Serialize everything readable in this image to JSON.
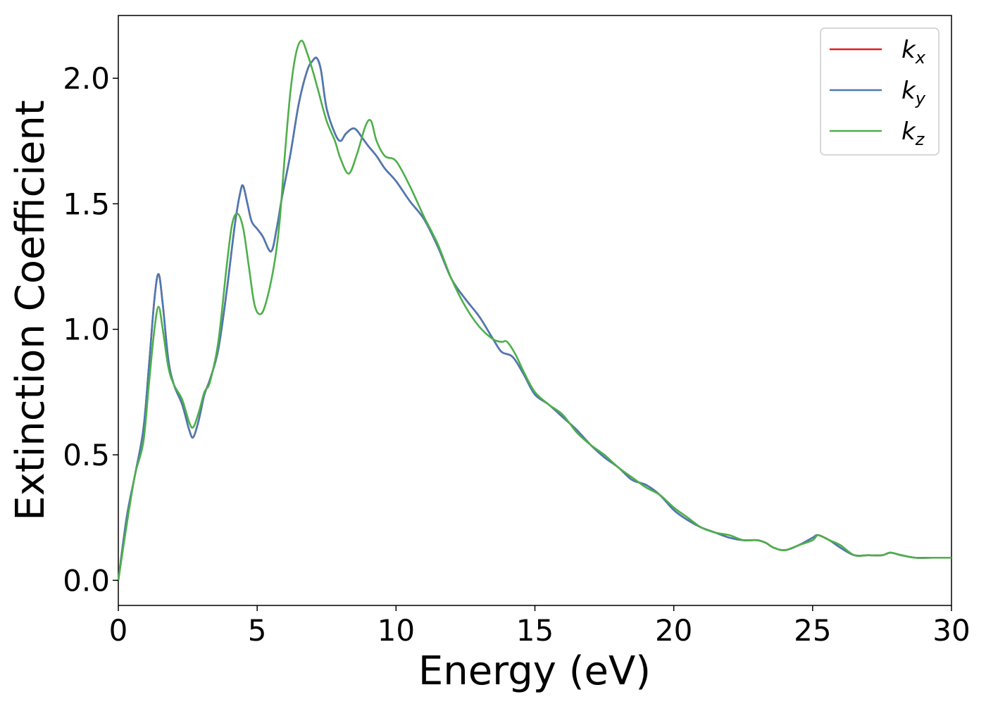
{
  "chart_data": {
    "type": "line",
    "xlabel": "Energy (eV)",
    "ylabel": "Extinction Coefficient",
    "xlim": [
      0,
      30
    ],
    "ylim": [
      -0.1,
      2.25
    ],
    "xticks": [
      0,
      5,
      10,
      15,
      20,
      25,
      30
    ],
    "yticks": [
      0.0,
      0.5,
      1.0,
      1.5,
      2.0
    ],
    "xtick_labels": [
      "0",
      "5",
      "10",
      "15",
      "20",
      "25",
      "30"
    ],
    "ytick_labels": [
      "0.0",
      "0.5",
      "1.0",
      "1.5",
      "2.0"
    ],
    "grid": false,
    "legend_position": "top-right",
    "series": [
      {
        "name": "k",
        "sub": "x",
        "color": "#e41a1c",
        "x": [
          0,
          0.3,
          0.6,
          0.9,
          1.1,
          1.3,
          1.45,
          1.6,
          1.8,
          2.0,
          2.3,
          2.55,
          2.7,
          2.9,
          3.1,
          3.3,
          3.6,
          3.9,
          4.2,
          4.4,
          4.5,
          4.65,
          4.8,
          5.0,
          5.2,
          5.5,
          5.7,
          5.9,
          6.2,
          6.5,
          6.8,
          7.0,
          7.15,
          7.3,
          7.5,
          7.8,
          8.0,
          8.2,
          8.5,
          8.8,
          9.0,
          9.3,
          9.6,
          10.0,
          10.5,
          11.0,
          11.5,
          12.0,
          12.5,
          13.0,
          13.5,
          13.8,
          14.2,
          14.6,
          15.0,
          15.5,
          16.0,
          16.5,
          17.0,
          17.5,
          18.0,
          18.5,
          19.0,
          19.5,
          20.0,
          20.5,
          21.0,
          21.5,
          22.0,
          22.5,
          23.0,
          23.3,
          23.6,
          24.0,
          24.5,
          25.0,
          25.2,
          25.6,
          26.0,
          26.5,
          27.0,
          27.5,
          27.8,
          28.2,
          28.7,
          29.3,
          30.0
        ],
        "y": [
          0.0,
          0.25,
          0.42,
          0.6,
          0.85,
          1.12,
          1.22,
          1.1,
          0.88,
          0.78,
          0.7,
          0.6,
          0.57,
          0.64,
          0.74,
          0.8,
          0.92,
          1.15,
          1.42,
          1.55,
          1.57,
          1.5,
          1.43,
          1.4,
          1.37,
          1.31,
          1.4,
          1.53,
          1.7,
          1.9,
          2.03,
          2.07,
          2.08,
          2.03,
          1.88,
          1.78,
          1.75,
          1.78,
          1.8,
          1.76,
          1.73,
          1.69,
          1.64,
          1.59,
          1.51,
          1.44,
          1.33,
          1.2,
          1.12,
          1.05,
          0.96,
          0.91,
          0.89,
          0.82,
          0.74,
          0.7,
          0.65,
          0.6,
          0.54,
          0.49,
          0.45,
          0.4,
          0.38,
          0.34,
          0.28,
          0.24,
          0.21,
          0.19,
          0.17,
          0.16,
          0.16,
          0.15,
          0.13,
          0.12,
          0.14,
          0.17,
          0.18,
          0.16,
          0.13,
          0.1,
          0.1,
          0.1,
          0.11,
          0.1,
          0.09,
          0.09,
          0.09
        ]
      },
      {
        "name": "k",
        "sub": "y",
        "color": "#4a7ab4",
        "x": [
          0,
          0.3,
          0.6,
          0.9,
          1.1,
          1.3,
          1.45,
          1.6,
          1.8,
          2.0,
          2.3,
          2.55,
          2.7,
          2.9,
          3.1,
          3.3,
          3.6,
          3.9,
          4.2,
          4.4,
          4.5,
          4.65,
          4.8,
          5.0,
          5.2,
          5.5,
          5.7,
          5.9,
          6.2,
          6.5,
          6.8,
          7.0,
          7.15,
          7.3,
          7.5,
          7.8,
          8.0,
          8.2,
          8.5,
          8.8,
          9.0,
          9.3,
          9.6,
          10.0,
          10.5,
          11.0,
          11.5,
          12.0,
          12.5,
          13.0,
          13.5,
          13.8,
          14.2,
          14.6,
          15.0,
          15.5,
          16.0,
          16.5,
          17.0,
          17.5,
          18.0,
          18.5,
          19.0,
          19.5,
          20.0,
          20.5,
          21.0,
          21.5,
          22.0,
          22.5,
          23.0,
          23.3,
          23.6,
          24.0,
          24.5,
          25.0,
          25.2,
          25.6,
          26.0,
          26.5,
          27.0,
          27.5,
          27.8,
          28.2,
          28.7,
          29.3,
          30.0
        ],
        "y": [
          0.0,
          0.25,
          0.42,
          0.6,
          0.85,
          1.12,
          1.22,
          1.1,
          0.88,
          0.78,
          0.7,
          0.6,
          0.57,
          0.64,
          0.74,
          0.8,
          0.92,
          1.15,
          1.42,
          1.55,
          1.57,
          1.5,
          1.43,
          1.4,
          1.37,
          1.31,
          1.4,
          1.53,
          1.7,
          1.9,
          2.03,
          2.07,
          2.08,
          2.03,
          1.88,
          1.78,
          1.75,
          1.78,
          1.8,
          1.76,
          1.73,
          1.69,
          1.64,
          1.59,
          1.51,
          1.44,
          1.33,
          1.2,
          1.12,
          1.05,
          0.96,
          0.91,
          0.89,
          0.82,
          0.74,
          0.7,
          0.65,
          0.6,
          0.54,
          0.49,
          0.45,
          0.4,
          0.38,
          0.34,
          0.28,
          0.24,
          0.21,
          0.19,
          0.17,
          0.16,
          0.16,
          0.15,
          0.13,
          0.12,
          0.14,
          0.17,
          0.18,
          0.16,
          0.13,
          0.1,
          0.1,
          0.1,
          0.11,
          0.1,
          0.09,
          0.09,
          0.09
        ]
      },
      {
        "name": "k",
        "sub": "z",
        "color": "#4daf4a",
        "x": [
          0,
          0.3,
          0.6,
          0.9,
          1.1,
          1.3,
          1.45,
          1.6,
          1.8,
          2.0,
          2.3,
          2.55,
          2.7,
          2.9,
          3.1,
          3.3,
          3.6,
          3.9,
          4.1,
          4.3,
          4.5,
          4.7,
          4.9,
          5.1,
          5.3,
          5.6,
          5.8,
          6.0,
          6.2,
          6.4,
          6.6,
          6.8,
          7.0,
          7.2,
          7.5,
          7.8,
          8.0,
          8.3,
          8.6,
          8.9,
          9.1,
          9.3,
          9.6,
          10.0,
          10.5,
          11.0,
          11.5,
          12.0,
          12.5,
          13.0,
          13.5,
          13.8,
          14.0,
          14.3,
          14.6,
          15.0,
          15.5,
          16.0,
          16.5,
          17.0,
          17.5,
          18.0,
          18.5,
          19.0,
          19.5,
          20.0,
          20.5,
          21.0,
          21.5,
          22.0,
          22.5,
          23.0,
          23.3,
          23.6,
          24.0,
          24.5,
          25.0,
          25.2,
          25.6,
          26.0,
          26.5,
          27.0,
          27.5,
          27.8,
          28.2,
          28.7,
          29.3,
          30.0
        ],
        "y": [
          0.0,
          0.22,
          0.42,
          0.55,
          0.78,
          1.0,
          1.09,
          1.0,
          0.85,
          0.78,
          0.72,
          0.63,
          0.61,
          0.67,
          0.75,
          0.79,
          0.95,
          1.25,
          1.42,
          1.46,
          1.4,
          1.25,
          1.1,
          1.06,
          1.1,
          1.25,
          1.42,
          1.7,
          1.95,
          2.1,
          2.15,
          2.1,
          2.03,
          1.95,
          1.83,
          1.75,
          1.68,
          1.62,
          1.7,
          1.81,
          1.83,
          1.75,
          1.69,
          1.67,
          1.57,
          1.45,
          1.34,
          1.2,
          1.09,
          1.01,
          0.96,
          0.95,
          0.95,
          0.9,
          0.83,
          0.75,
          0.7,
          0.66,
          0.59,
          0.54,
          0.5,
          0.45,
          0.41,
          0.37,
          0.34,
          0.29,
          0.25,
          0.21,
          0.19,
          0.18,
          0.16,
          0.16,
          0.15,
          0.13,
          0.12,
          0.14,
          0.16,
          0.18,
          0.16,
          0.14,
          0.1,
          0.1,
          0.1,
          0.11,
          0.1,
          0.09,
          0.09,
          0.09
        ]
      }
    ]
  }
}
